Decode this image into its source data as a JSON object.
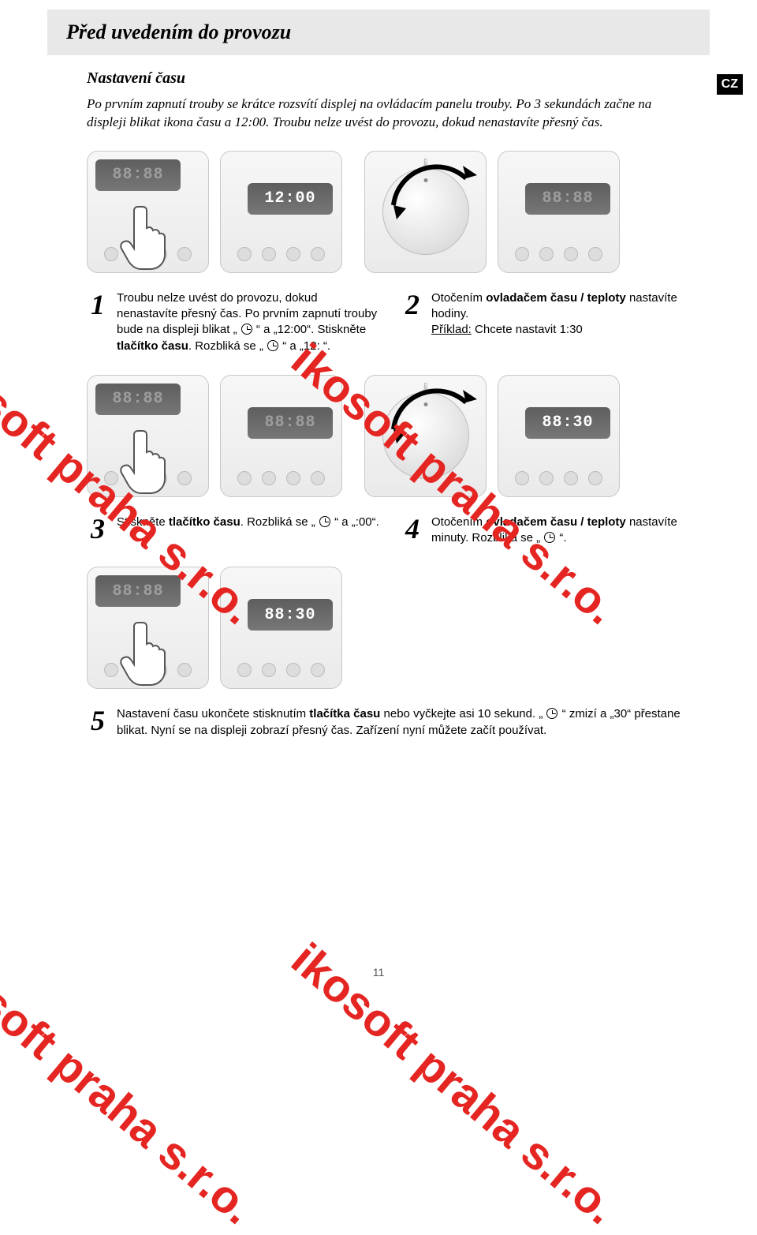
{
  "header": {
    "title": "Před uvedením do provozu"
  },
  "badge": "CZ",
  "subhead": "Nastavení času",
  "intro": "Po prvním zapnutí trouby se krátce rozsvítí displej na ovládacím panelu trouby. Po 3 sekundách začne na displeji blikat ikona času a 12:00. Troubu nelze uvést do provozu, dokud nenastavíte přesný čas.",
  "rows": [
    {
      "left_lcd_top": "88:88",
      "left_lcd_dim": true,
      "right_lcd": "12:00",
      "knob_lcd": "88:88",
      "stepA": {
        "num": "1",
        "html": "Troubu nelze uvést do provozu, dokud nenastavíte přesný čas. Po prvním zapnutí trouby bude na displeji blikat „ ⊕ “ a „12:00“. Stiskněte <strong>tlačítko času</strong>. Rozbliká se „ ⊕ “ a „12: “."
      },
      "stepB": {
        "num": "2",
        "html": "Otočením <strong>ovladačem času / teploty</strong> nastavíte hodiny.<br><span class='under'>Příklad:</span> Chcete nastavit 1:30"
      }
    },
    {
      "left_lcd_top": "88:88",
      "left_lcd_dim": true,
      "right_lcd": "88:88",
      "right_lcd_dim": true,
      "knob_lcd": "88:30",
      "stepA": {
        "num": "3",
        "html": "Stiskněte <strong>tlačítko času</strong>. Rozbliká se „ ⊕ “ a „:00“."
      },
      "stepB": {
        "num": "4",
        "html": "Otočením <strong>ovladačem času / teploty</strong> nastavíte minuty. Rozbliká se „ ⊕ “."
      }
    },
    {
      "left_lcd_top": "88:88",
      "left_lcd_dim": true,
      "right_lcd": "88:30",
      "stepA": {
        "num": "5",
        "html": "Nastavení času ukončete stisknutím <strong>tlačítka času</strong> nebo vyčkejte asi 10 sekund. „ ⊕ “ zmizí a „30“ přestane blikat. Nyní se na displeji zobrazí přesný čas. Zařízení nyní můžete začít používat."
      }
    }
  ],
  "page_number": "11",
  "watermark_text": "ikosoft praha s.r.o.",
  "colors": {
    "watermark": "#e52521",
    "header_band": "#e8e8e8",
    "lcd_bg": "#6a6a6a",
    "panel_border": "#c8c8c8"
  }
}
